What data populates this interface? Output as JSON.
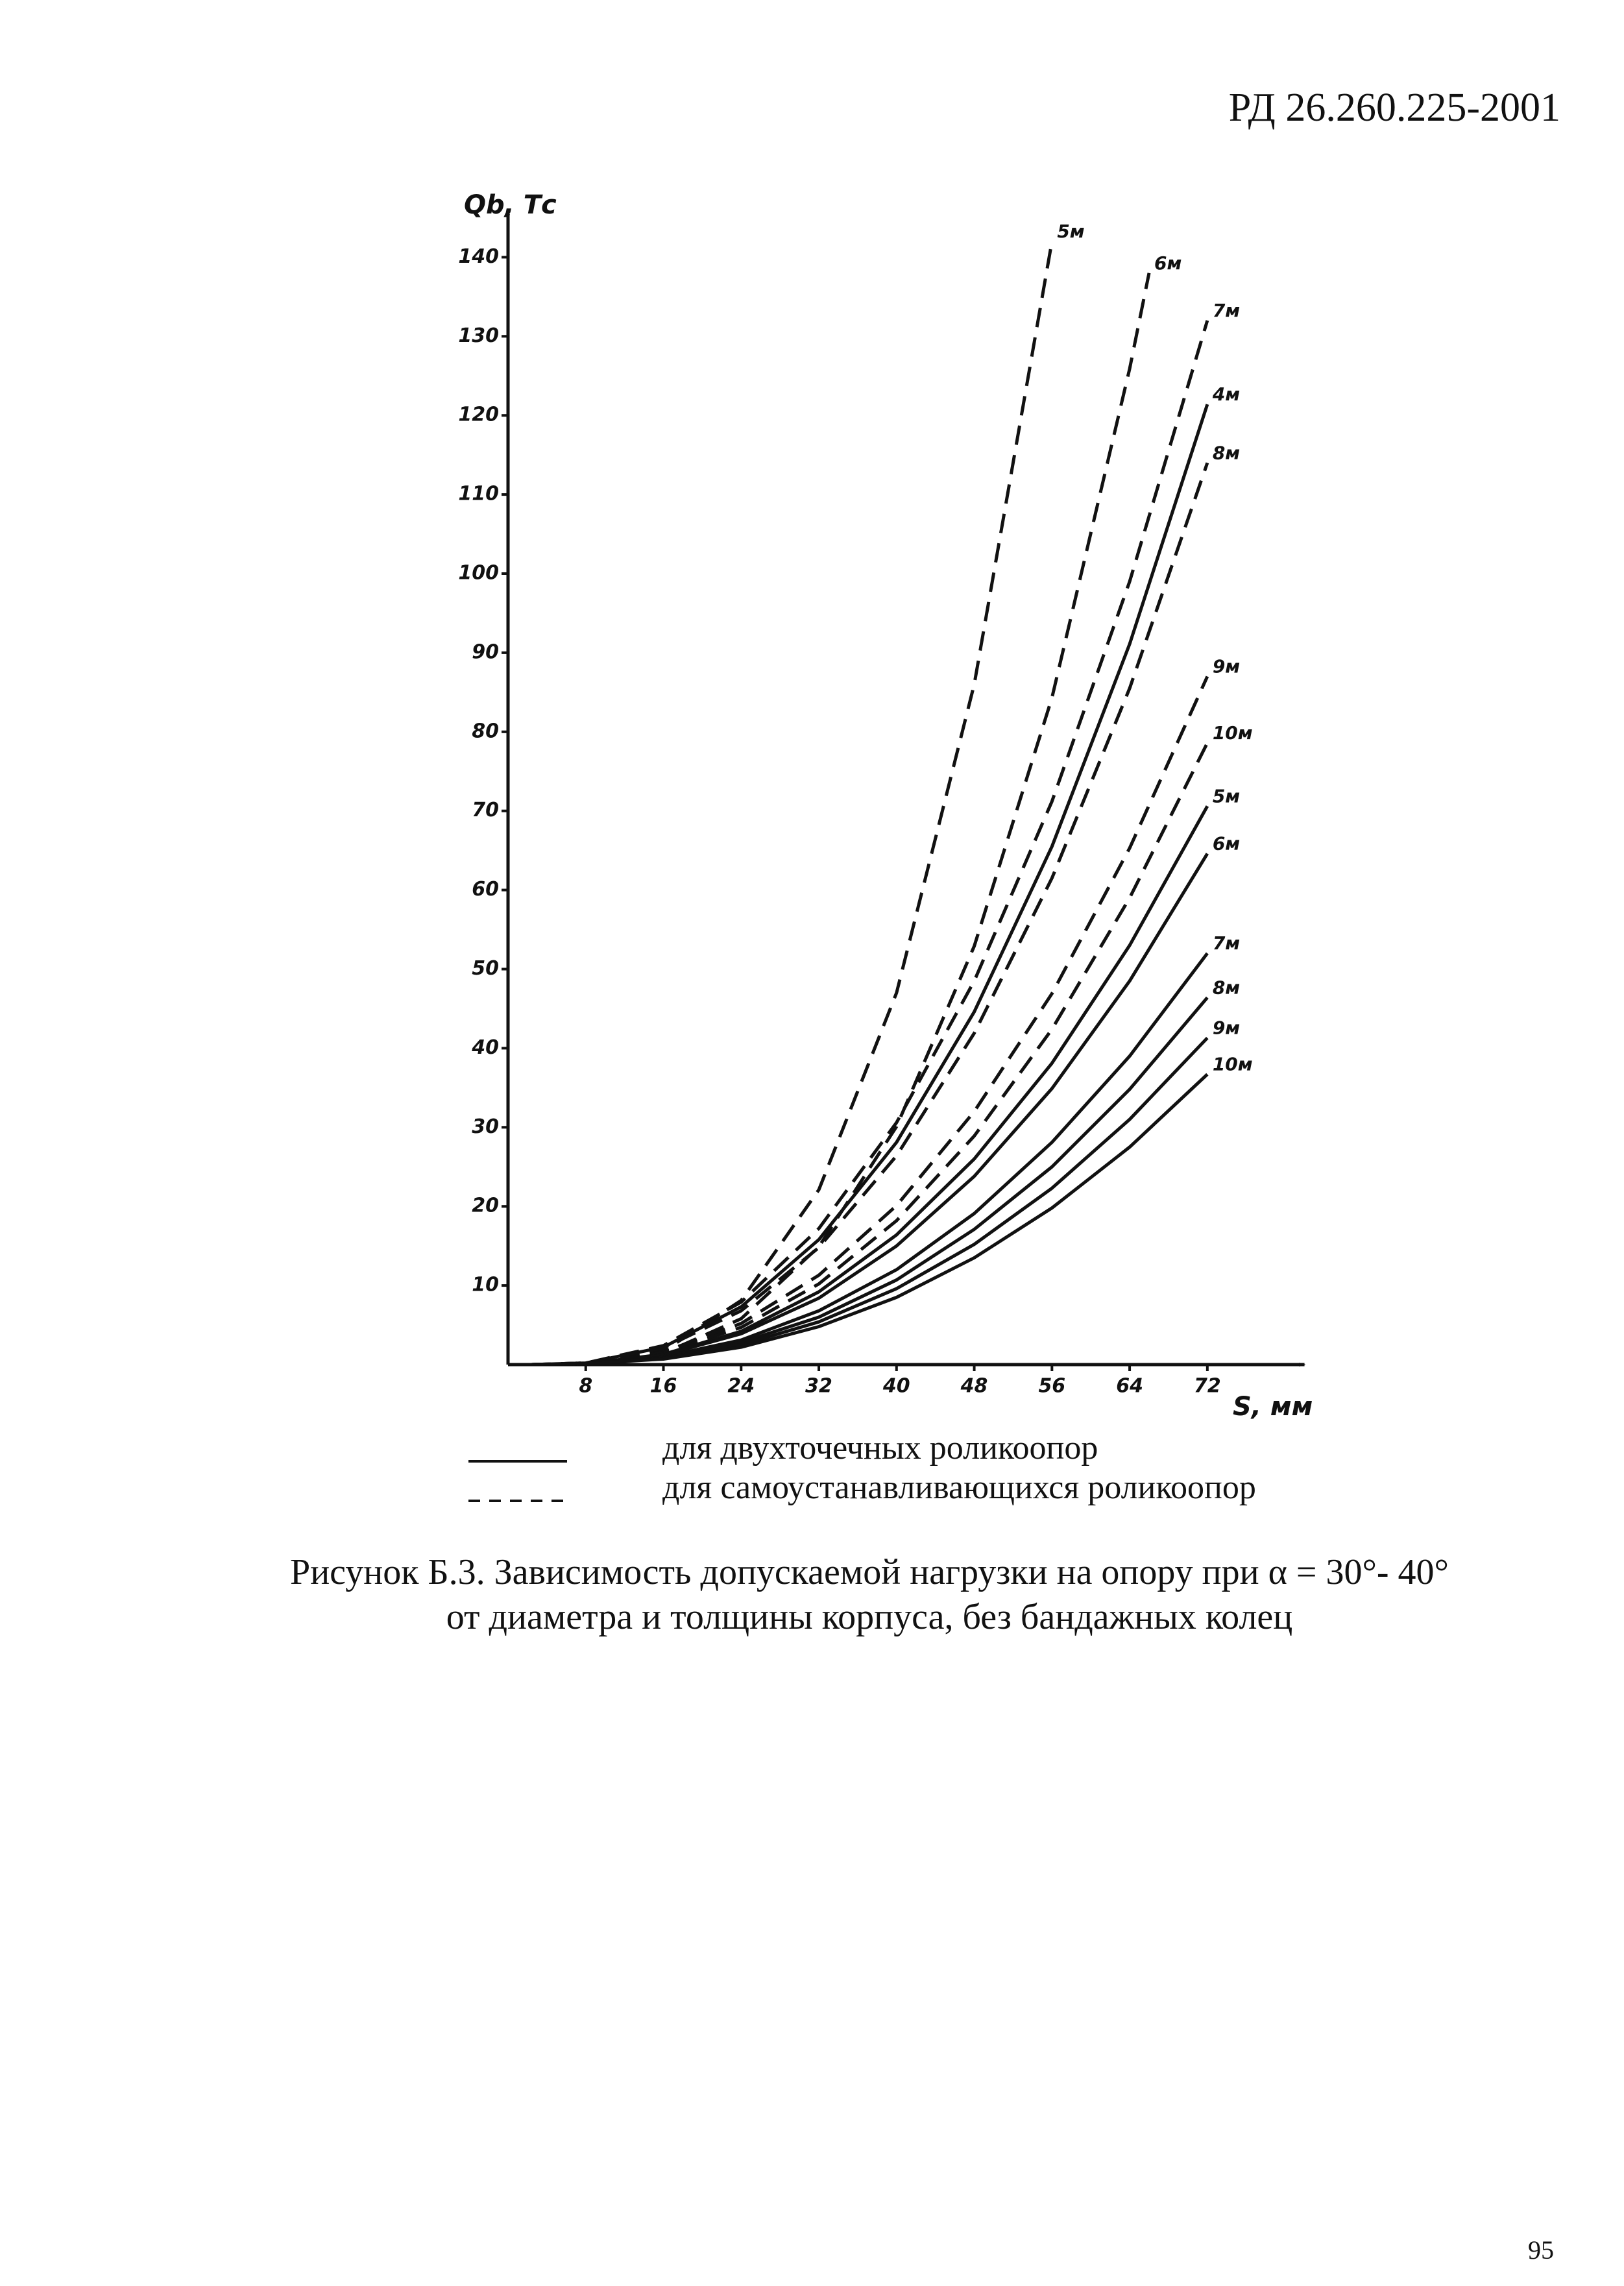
{
  "header": {
    "code": "РД 26.260.225-2001"
  },
  "chart_data": {
    "type": "line",
    "x_label": "S, мм",
    "y_label": "Qb, Тс",
    "xlim": [
      0,
      82
    ],
    "ylim": [
      0,
      146
    ],
    "xticks": [
      8,
      16,
      24,
      32,
      40,
      48,
      56,
      64,
      72
    ],
    "yticks": [
      10,
      20,
      30,
      40,
      50,
      60,
      70,
      80,
      90,
      100,
      110,
      120,
      130,
      140
    ],
    "series": [
      {
        "name": "5м",
        "color": "#111111",
        "style": "dashed",
        "x": [
          8,
          16,
          24,
          32,
          40,
          48,
          56
        ],
        "values": [
          0.1,
          1.7,
          8.1,
          22.1,
          47.0,
          86.0,
          142
        ]
      },
      {
        "name": "6м",
        "color": "#111111",
        "style": "dashed",
        "x": [
          8,
          16,
          24,
          32,
          40,
          48,
          56,
          64,
          66
        ],
        "values": [
          0.1,
          1.4,
          5.8,
          14.9,
          30.1,
          52.9,
          84.3,
          125.9,
          138
        ]
      },
      {
        "name": "7м",
        "color": "#111111",
        "style": "dashed",
        "x": [
          8,
          16,
          24,
          32,
          40,
          48,
          56,
          64,
          72
        ],
        "values": [
          0.2,
          2.4,
          7.9,
          17.2,
          30.6,
          48.5,
          71.2,
          99.0,
          132
        ]
      },
      {
        "name": "4м",
        "color": "#111111",
        "style": "solid",
        "x": [
          8,
          16,
          24,
          32,
          40,
          48,
          56,
          64,
          72
        ],
        "values": [
          0.2,
          2.2,
          7.3,
          15.8,
          28.1,
          44.6,
          65.5,
          91.1,
          121.4
        ]
      },
      {
        "name": "8м",
        "color": "#111111",
        "style": "dashed",
        "x": [
          8,
          16,
          24,
          32,
          40,
          48,
          56,
          64,
          72
        ],
        "values": [
          0.2,
          2.1,
          6.8,
          14.8,
          26.4,
          41.9,
          61.5,
          85.5,
          114
        ]
      },
      {
        "name": "9м",
        "color": "#111111",
        "style": "dashed",
        "x": [
          8,
          16,
          24,
          32,
          40,
          48,
          56,
          64,
          72
        ],
        "values": [
          0.1,
          1.6,
          5.2,
          11.3,
          20.1,
          32.0,
          46.9,
          65.3,
          87
        ]
      },
      {
        "name": "10м",
        "color": "#111111",
        "style": "dashed",
        "x": [
          8,
          16,
          24,
          32,
          40,
          48,
          56,
          64,
          72
        ],
        "values": [
          0.1,
          1.5,
          4.7,
          10.2,
          18.2,
          28.9,
          42.4,
          59.0,
          78.6
        ]
      },
      {
        "name": "5м",
        "color": "#111111",
        "style": "solid",
        "x": [
          8,
          16,
          24,
          32,
          40,
          48,
          56,
          64,
          72
        ],
        "values": [
          0.1,
          1.3,
          4.2,
          9.2,
          16.4,
          26.0,
          38.1,
          53.0,
          70.6
        ]
      },
      {
        "name": "6м",
        "color": "#111111",
        "style": "solid",
        "x": [
          8,
          16,
          24,
          32,
          40,
          48,
          56,
          64,
          72
        ],
        "values": [
          0.1,
          1.2,
          3.9,
          8.4,
          15.0,
          23.8,
          34.9,
          48.5,
          64.6
        ]
      },
      {
        "name": "7м",
        "color": "#111111",
        "style": "solid",
        "x": [
          8,
          16,
          24,
          32,
          40,
          48,
          56,
          64,
          72
        ],
        "values": [
          0.1,
          1.0,
          3.1,
          6.8,
          12.0,
          19.1,
          28.1,
          39.0,
          52
        ]
      },
      {
        "name": "8м",
        "color": "#111111",
        "style": "solid",
        "x": [
          8,
          16,
          24,
          32,
          40,
          48,
          56,
          64,
          72
        ],
        "values": [
          0.1,
          0.9,
          2.8,
          6.0,
          10.7,
          17.1,
          25.0,
          34.8,
          46.4
        ]
      },
      {
        "name": "9м",
        "color": "#111111",
        "style": "solid",
        "x": [
          8,
          16,
          24,
          32,
          40,
          48,
          56,
          64,
          72
        ],
        "values": [
          0.1,
          0.8,
          2.5,
          5.4,
          9.6,
          15.2,
          22.3,
          31.0,
          41.3
        ]
      },
      {
        "name": "10м",
        "color": "#111111",
        "style": "solid",
        "x": [
          8,
          16,
          24,
          32,
          40,
          48,
          56,
          64,
          72
        ],
        "values": [
          0.1,
          0.7,
          2.2,
          4.8,
          8.5,
          13.5,
          19.8,
          27.5,
          36.7
        ]
      }
    ],
    "legend": [
      {
        "style": "solid",
        "label": "для двухточечных роликоопор"
      },
      {
        "style": "dashed",
        "label": "для самоустанавливающихся роликоопор"
      }
    ]
  },
  "caption": {
    "lines": [
      "Рисунок Б.3. Зависимость допускаемой нагрузки на опору при α = 30°- 40°",
      "от диаметра и толщины корпуса, без бандажных колец"
    ]
  },
  "page_number": "95"
}
